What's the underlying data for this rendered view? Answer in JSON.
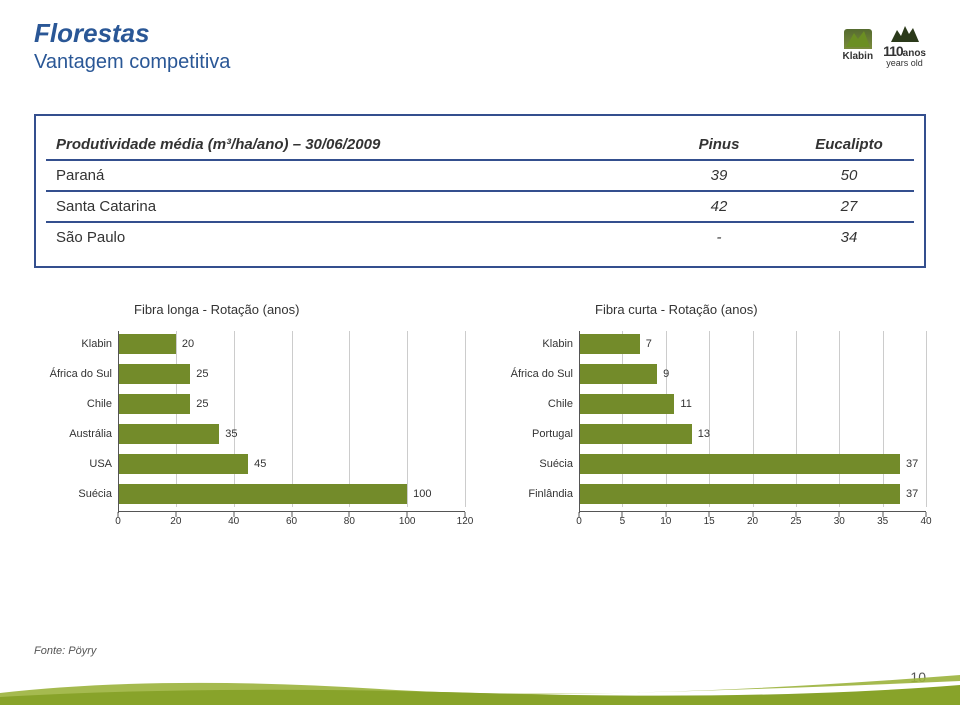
{
  "header": {
    "title": "Florestas",
    "subtitle": "Vantagem competitiva",
    "brand_name": "Klabin",
    "anniversary_number": "110",
    "anniversary_unit": "anos",
    "anniversary_sub": "years old"
  },
  "table": {
    "col_header_metric": "Produtividade média (m³/ha/ano) – 30/06/2009",
    "col_headers": [
      "Pinus",
      "Eucalipto"
    ],
    "rows": [
      {
        "label": "Paraná",
        "values": [
          "39",
          "50"
        ]
      },
      {
        "label": "Santa Catarina",
        "values": [
          "42",
          "27"
        ]
      },
      {
        "label": "São Paulo",
        "values": [
          "-",
          "34"
        ]
      }
    ],
    "border_color": "#344f8e",
    "header_text_color": "#333333"
  },
  "chart_left": {
    "type": "bar-horizontal",
    "title": "Fibra longa - Rotação (anos)",
    "bar_color": "#738b2a",
    "label_fontsize": 11,
    "value_fontsize": 11,
    "grid_color": "#cccccc",
    "axis_color": "#555555",
    "background_color": "#ffffff",
    "xlim": [
      0,
      120
    ],
    "xtick_step": 20,
    "categories": [
      "Klabin",
      "África do Sul",
      "Chile",
      "Austrália",
      "USA",
      "Suécia"
    ],
    "values": [
      20,
      25,
      25,
      35,
      45,
      100
    ]
  },
  "chart_right": {
    "type": "bar-horizontal",
    "title": "Fibra curta - Rotação (anos)",
    "bar_color": "#738b2a",
    "label_fontsize": 11,
    "value_fontsize": 11,
    "grid_color": "#cccccc",
    "axis_color": "#555555",
    "background_color": "#ffffff",
    "xlim": [
      0,
      40
    ],
    "xtick_step": 5,
    "categories": [
      "Klabin",
      "África do Sul",
      "Chile",
      "Portugal",
      "Suécia",
      "Finlândia"
    ],
    "values": [
      7,
      9,
      11,
      13,
      37,
      37
    ]
  },
  "source_label": "Fonte: Pöyry",
  "page_number": "10",
  "footer_curve_color": "#88a32a",
  "brand_green": "#556b2f"
}
